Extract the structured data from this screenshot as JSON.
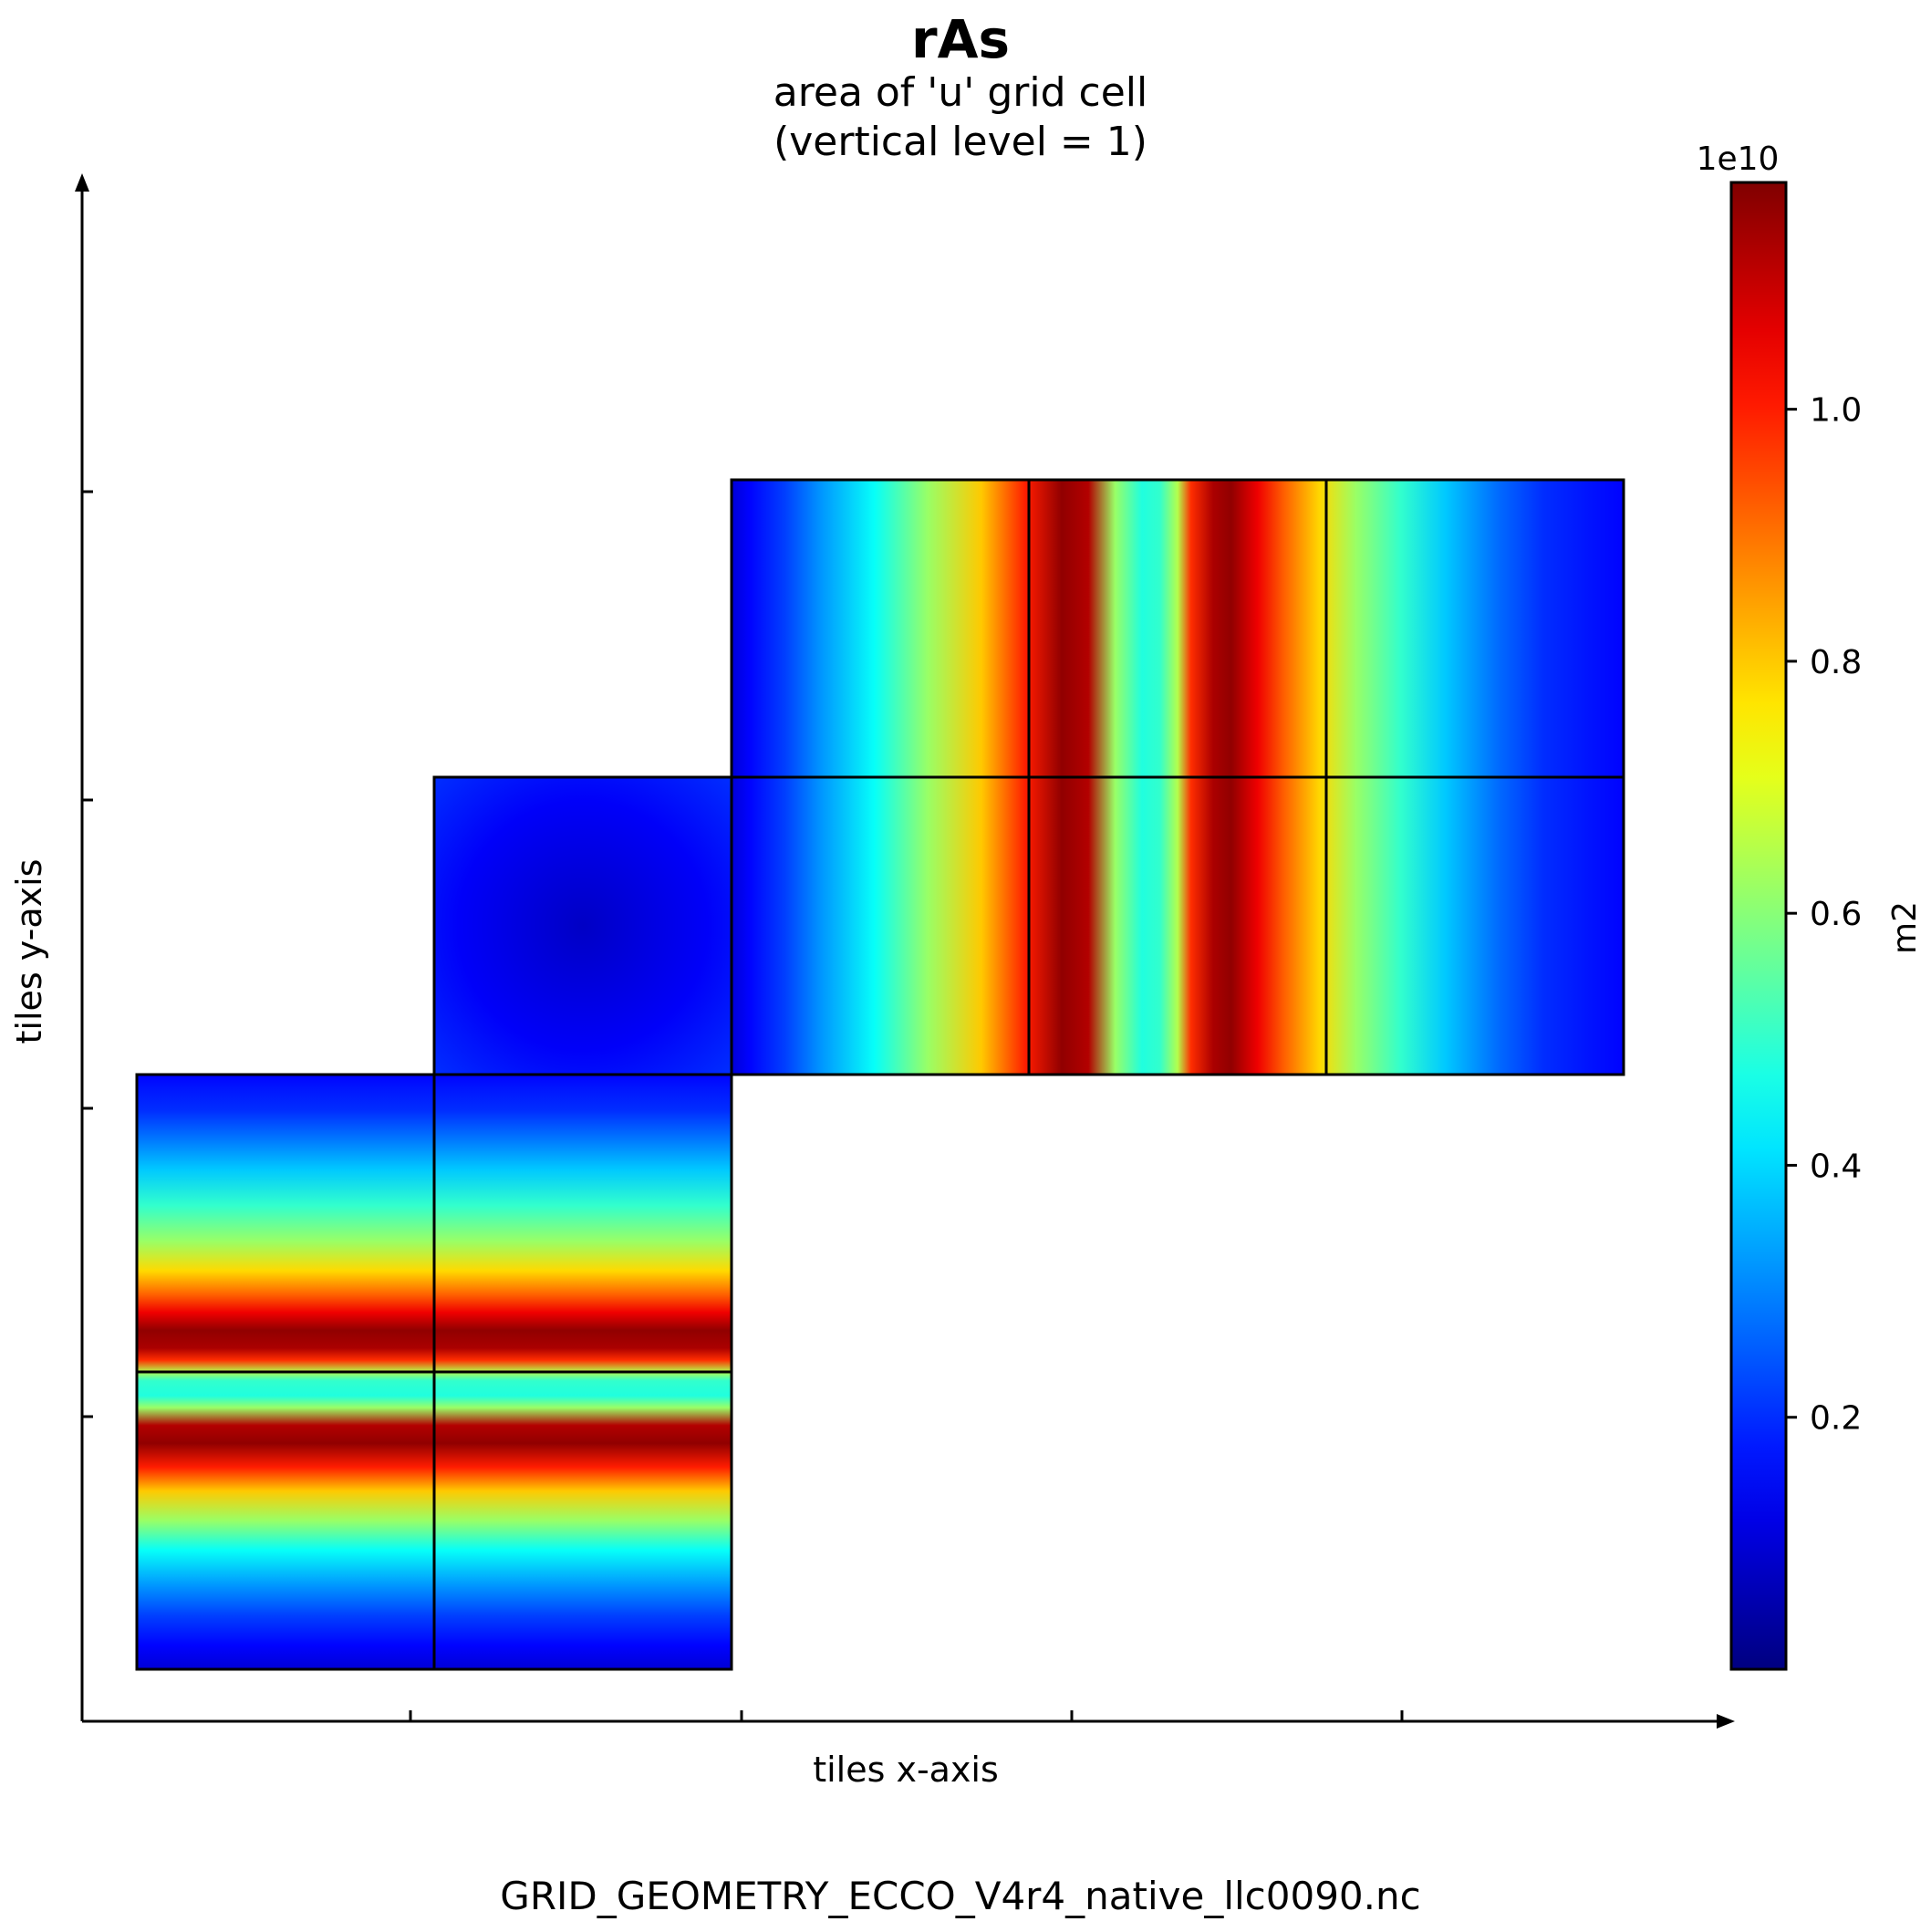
{
  "chart_data": {
    "type": "heatmap",
    "title": "rAs",
    "subtitle_lines": [
      "area of 'u' grid cell",
      "(vertical level = 1)"
    ],
    "xlabel": "tiles x-axis",
    "ylabel": "tiles y-axis",
    "footer": "GRID_GEOMETRY_ECCO_V4r4_native_llc0090.nc",
    "colormap": "jet",
    "colorbar": {
      "label": "m2",
      "multiplier_label": "1e10",
      "min": 0.0,
      "max": 1.18,
      "ticks": [
        0.2,
        0.4,
        0.6,
        0.8,
        1.0
      ],
      "tick_labels": [
        "0.2",
        "0.4",
        "0.6",
        "0.8",
        "1.0"
      ]
    },
    "grid": {
      "cols": 5,
      "rows": 5
    },
    "tiles": [
      {
        "col": 0,
        "row": 4,
        "pattern": "bands_y"
      },
      {
        "col": 1,
        "row": 4,
        "pattern": "bands_y"
      },
      {
        "col": 0,
        "row": 3,
        "pattern": "bands_y"
      },
      {
        "col": 1,
        "row": 3,
        "pattern": "bands_y"
      },
      {
        "col": 1,
        "row": 2,
        "pattern": "arctic"
      },
      {
        "col": 2,
        "row": 2,
        "pattern": "bands_x"
      },
      {
        "col": 3,
        "row": 2,
        "pattern": "bands_x"
      },
      {
        "col": 4,
        "row": 2,
        "pattern": "bands_x"
      },
      {
        "col": 2,
        "row": 1,
        "pattern": "bands_x"
      },
      {
        "col": 3,
        "row": 1,
        "pattern": "bands_x"
      },
      {
        "col": 4,
        "row": 1,
        "pattern": "bands_x"
      }
    ],
    "band_profile": {
      "position": [
        0.0,
        0.02,
        0.06,
        0.1,
        0.16,
        0.22,
        0.28,
        0.33,
        0.37,
        0.4,
        0.43,
        0.46,
        0.48,
        0.5,
        0.515,
        0.54,
        0.56,
        0.59,
        0.62,
        0.66,
        0.7,
        0.75,
        0.8,
        0.86,
        0.91,
        0.96,
        1.0
      ],
      "value_1e10": [
        0.15,
        0.17,
        0.2,
        0.27,
        0.38,
        0.5,
        0.62,
        0.78,
        0.92,
        1.05,
        1.16,
        1.13,
        0.98,
        0.65,
        0.5,
        0.48,
        0.62,
        1.12,
        1.16,
        1.0,
        0.8,
        0.62,
        0.45,
        0.32,
        0.22,
        0.15,
        0.1
      ]
    }
  }
}
